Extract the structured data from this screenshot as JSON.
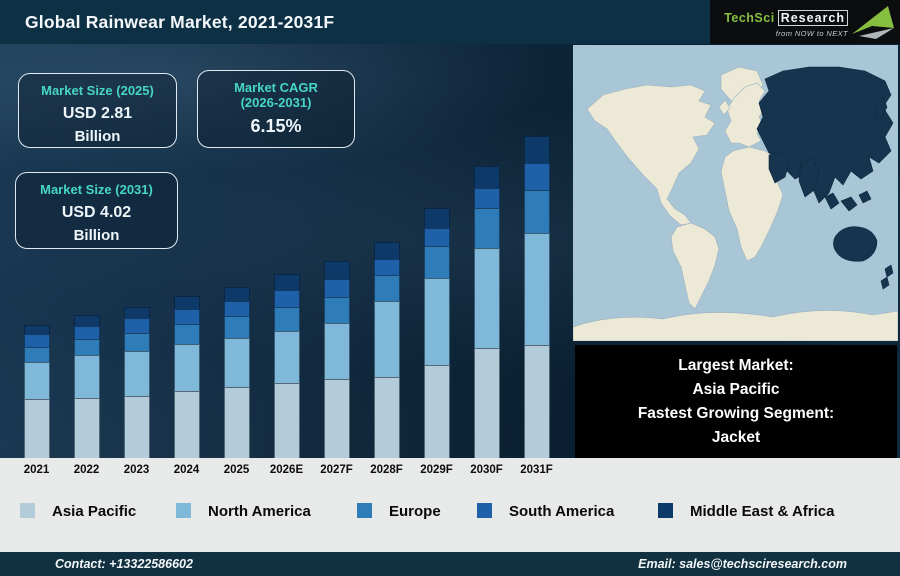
{
  "header": {
    "title": "Global Rainwear Market, 2021-2031F",
    "logo": {
      "brand_primary": "TechSci",
      "brand_secondary": "Research",
      "tagline": "from NOW to NEXT",
      "brand_color": "#86bf3f"
    }
  },
  "info_boxes": {
    "box1": {
      "label": "Market Size (2025)",
      "value": "USD 2.81",
      "unit": "Billion"
    },
    "box2": {
      "label_line1": "Market CAGR",
      "label_line2": "(2026-2031)",
      "value": "6.15%"
    },
    "box3": {
      "label": "Market Size (2031)",
      "value": "USD 4.02",
      "unit": "Billion"
    }
  },
  "highlight_box": {
    "line1": "Largest Market:",
    "line2": "Asia Pacific",
    "line3": "Fastest Growing Segment:",
    "line4": "Jacket"
  },
  "map": {
    "highlighted_region": "Asia Pacific",
    "ocean_color": "#a9c6d6",
    "land_color": "#ece9d6",
    "highlight_color": "#17344e"
  },
  "footer": {
    "contact": "Contact: +13322586602",
    "email": "Email: sales@techsciresearch.com"
  },
  "chart_data": {
    "type": "bar",
    "subtype": "stacked_vertical",
    "title": "Global Rainwear Market, 2021-2031F",
    "categories": [
      "2021",
      "2022",
      "2023",
      "2024",
      "2025",
      "2026E",
      "2027F",
      "2028F",
      "2029F",
      "2030F",
      "2031F"
    ],
    "series": [
      {
        "name": "Asia Pacific",
        "color": "#b2ccd9",
        "values": [
          59,
          60,
          62,
          67,
          71,
          75,
          79,
          81,
          93,
          110,
          113
        ]
      },
      {
        "name": "North America",
        "color": "#7fb8d9",
        "values": [
          37,
          43,
          45,
          47,
          49,
          52,
          56,
          76,
          87,
          100,
          112
        ]
      },
      {
        "name": "Europe",
        "color": "#2f7db8",
        "values": [
          15,
          16,
          18,
          20,
          22,
          24,
          26,
          26,
          32,
          40,
          43
        ]
      },
      {
        "name": "South America",
        "color": "#1f61a8",
        "values": [
          13,
          13,
          15,
          15,
          15,
          17,
          18,
          16,
          18,
          20,
          27
        ]
      },
      {
        "name": "Middle East & Africa",
        "color": "#0d3a69",
        "values": [
          9,
          11,
          11,
          13,
          14,
          16,
          18,
          17,
          20,
          22,
          27
        ]
      }
    ],
    "value_unit": "relative stacked heights as drawn (chart displays no value axis)",
    "known_points": {
      "market_size_2025_usd_billion": 2.81,
      "market_size_2031_usd_billion": 4.02,
      "cagr_2026_2031_percent": 6.15
    },
    "xlabel": "",
    "ylabel": "",
    "grid": false,
    "legend_position": "bottom"
  }
}
